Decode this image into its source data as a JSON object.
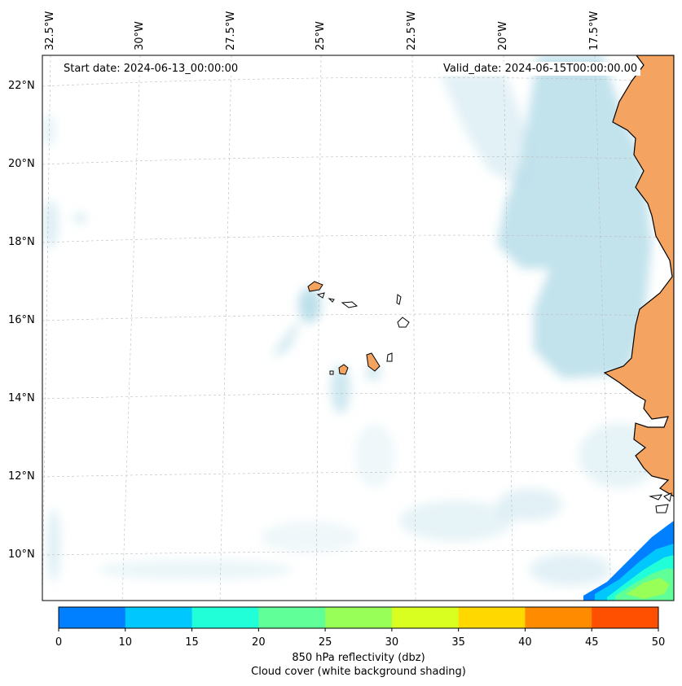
{
  "map": {
    "start_date": "Start date: 2024-06-13_00:00:00",
    "valid_date": "Valid_date: 2024-06-15T00:00:00.00",
    "lon_labels": [
      "32.5°W",
      "30°W",
      "27.5°W",
      "25°W",
      "22.5°W",
      "20°W",
      "17.5°W"
    ],
    "lat_labels": [
      "22°N",
      "20°N",
      "18°N",
      "16°N",
      "14°N",
      "12°N",
      "10°N"
    ],
    "colors": {
      "land": "#f4a460",
      "cloud": "#add8e6",
      "coast": "#000000",
      "grid": "#bbbbbb"
    }
  },
  "colorbar": {
    "ticks": [
      "0",
      "10",
      "15",
      "20",
      "25",
      "30",
      "35",
      "40",
      "45",
      "50"
    ],
    "colors": [
      "#0080ff",
      "#00c8ff",
      "#20ffd8",
      "#60ff98",
      "#98ff58",
      "#d8ff20",
      "#ffd800",
      "#ff8c00",
      "#ff4f00"
    ],
    "label": "850 hPa reflectivity (dbz)",
    "sublabel": "Cloud cover (white background shading)"
  }
}
